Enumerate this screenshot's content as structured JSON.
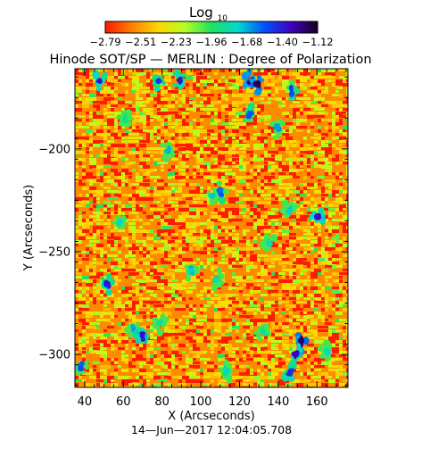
{
  "chart_data": {
    "type": "heatmap",
    "title": "Hinode SOT/SP — MERLIN : Degree of Polarization",
    "xlabel": "X (Arcseconds)",
    "ylabel": "Y (Arcseconds)",
    "footer": "14—Jun—2017 12:04:05.708",
    "colorbar": {
      "label_main": "Log",
      "label_sub": "10",
      "range": [
        -2.79,
        -1.12
      ],
      "ticks": [
        "−2.79",
        "−2.51",
        "−2.23",
        "−1.96",
        "−1.68",
        "−1.40",
        "−1.12"
      ],
      "colors": [
        "#ff1a00",
        "#ff8000",
        "#ffd800",
        "#b4ff20",
        "#20e060",
        "#00d8d0",
        "#0050ff",
        "#4000c0",
        "#180020"
      ]
    },
    "xlim": [
      35,
      176
    ],
    "ylim": [
      -316,
      -161
    ],
    "x_ticks": [
      {
        "value": 40,
        "label": "40"
      },
      {
        "value": 60,
        "label": "60"
      },
      {
        "value": 80,
        "label": "80"
      },
      {
        "value": 100,
        "label": "100"
      },
      {
        "value": 120,
        "label": "120"
      },
      {
        "value": 140,
        "label": "140"
      },
      {
        "value": 160,
        "label": "160"
      }
    ],
    "y_ticks": [
      {
        "value": -200,
        "label": "−200"
      },
      {
        "value": -250,
        "label": "−250"
      },
      {
        "value": -300,
        "label": "−300"
      }
    ],
    "background_level": -2.62,
    "patches": [
      {
        "x": 48,
        "y": -167,
        "level": -1.45
      },
      {
        "x": 78,
        "y": -167,
        "level": -1.5
      },
      {
        "x": 89,
        "y": -167,
        "level": -1.45
      },
      {
        "x": 126,
        "y": -167,
        "level": -1.3
      },
      {
        "x": 129,
        "y": -169,
        "level": -1.25
      },
      {
        "x": 147,
        "y": -172,
        "level": -1.55
      },
      {
        "x": 125,
        "y": -183,
        "level": -1.55
      },
      {
        "x": 61,
        "y": -185,
        "level": -1.9
      },
      {
        "x": 140,
        "y": -190,
        "level": -1.7
      },
      {
        "x": 83,
        "y": -201,
        "level": -1.7
      },
      {
        "x": 106,
        "y": -223,
        "level": -1.75
      },
      {
        "x": 110,
        "y": -221,
        "level": -1.6
      },
      {
        "x": 146,
        "y": -230,
        "level": -1.8
      },
      {
        "x": 160,
        "y": -233,
        "level": -1.4
      },
      {
        "x": 58,
        "y": -236,
        "level": -1.8
      },
      {
        "x": 135,
        "y": -246,
        "level": -1.8
      },
      {
        "x": 95,
        "y": -259,
        "level": -1.75
      },
      {
        "x": 52,
        "y": -266,
        "level": -1.45
      },
      {
        "x": 108,
        "y": -263,
        "level": -1.9
      },
      {
        "x": 79,
        "y": -285,
        "level": -1.9
      },
      {
        "x": 65,
        "y": -288,
        "level": -1.7
      },
      {
        "x": 70,
        "y": -291,
        "level": -1.4
      },
      {
        "x": 132,
        "y": -289,
        "level": -1.85
      },
      {
        "x": 152,
        "y": -294,
        "level": -1.25
      },
      {
        "x": 149,
        "y": -300,
        "level": -1.35
      },
      {
        "x": 146,
        "y": -308,
        "level": -1.5
      },
      {
        "x": 38,
        "y": -306,
        "level": -1.6
      },
      {
        "x": 113,
        "y": -308,
        "level": -1.85
      },
      {
        "x": 165,
        "y": -299,
        "level": -1.85
      }
    ]
  }
}
